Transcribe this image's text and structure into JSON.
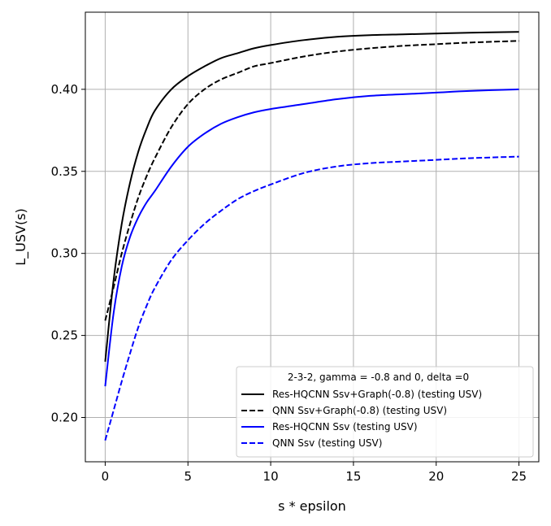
{
  "chart_data": {
    "type": "line",
    "title": "",
    "xlabel": "s * epsilon",
    "ylabel": "L_USV(s)",
    "xlim": [
      -1.2,
      26.2
    ],
    "ylim": [
      0.173,
      0.447
    ],
    "xticks": [
      0,
      5,
      10,
      15,
      20,
      25
    ],
    "yticks": [
      0.2,
      0.25,
      0.3,
      0.35,
      0.4
    ],
    "ytick_labels": [
      "0.20",
      "0.25",
      "0.30",
      "0.35",
      "0.40"
    ],
    "grid": true,
    "legend": {
      "placement": "lower-right",
      "title": "2-3-2, gamma = -0.8 and 0, delta =0"
    },
    "series": [
      {
        "name": "Res-HQCNN Ssv+Graph(-0.8) (testing USV)",
        "color": "#000000",
        "style": "solid",
        "x": [
          0,
          0.5,
          1,
          1.5,
          2,
          2.5,
          3,
          4,
          5,
          6,
          7,
          8,
          9,
          10,
          12,
          14,
          16,
          18,
          20,
          22,
          25
        ],
        "y": [
          0.234,
          0.283,
          0.318,
          0.343,
          0.362,
          0.376,
          0.387,
          0.4,
          0.408,
          0.414,
          0.419,
          0.422,
          0.425,
          0.427,
          0.43,
          0.432,
          0.433,
          0.4335,
          0.434,
          0.4345,
          0.435
        ]
      },
      {
        "name": "QNN Ssv+Graph(-0.8) (testing USV)",
        "color": "#000000",
        "style": "dashed",
        "x": [
          0,
          0.5,
          1,
          1.5,
          2,
          2.5,
          3,
          4,
          5,
          6,
          7,
          8,
          9,
          10,
          12,
          14,
          16,
          18,
          20,
          22,
          25
        ],
        "y": [
          0.259,
          0.279,
          0.3,
          0.318,
          0.334,
          0.347,
          0.358,
          0.377,
          0.391,
          0.4,
          0.406,
          0.41,
          0.414,
          0.416,
          0.42,
          0.423,
          0.425,
          0.4265,
          0.4275,
          0.4285,
          0.4295
        ]
      },
      {
        "name": "Res-HQCNN Ssv (testing USV)",
        "color": "#0000ff",
        "style": "solid",
        "x": [
          0,
          0.5,
          1,
          1.5,
          2,
          2.5,
          3,
          4,
          5,
          6,
          7,
          8,
          9,
          10,
          12,
          14,
          16,
          18,
          20,
          22,
          25
        ],
        "y": [
          0.219,
          0.263,
          0.292,
          0.31,
          0.322,
          0.331,
          0.338,
          0.353,
          0.365,
          0.373,
          0.379,
          0.383,
          0.386,
          0.388,
          0.391,
          0.394,
          0.396,
          0.397,
          0.398,
          0.399,
          0.4
        ]
      },
      {
        "name": "QNN Ssv (testing USV)",
        "color": "#0000ff",
        "style": "dashed",
        "x": [
          0,
          0.5,
          1,
          1.5,
          2,
          2.5,
          3,
          4,
          5,
          6,
          7,
          8,
          9,
          10,
          12,
          14,
          16,
          18,
          20,
          22,
          25
        ],
        "y": [
          0.186,
          0.204,
          0.222,
          0.239,
          0.255,
          0.268,
          0.279,
          0.296,
          0.308,
          0.318,
          0.326,
          0.333,
          0.338,
          0.342,
          0.349,
          0.353,
          0.355,
          0.356,
          0.357,
          0.358,
          0.359
        ]
      }
    ]
  }
}
